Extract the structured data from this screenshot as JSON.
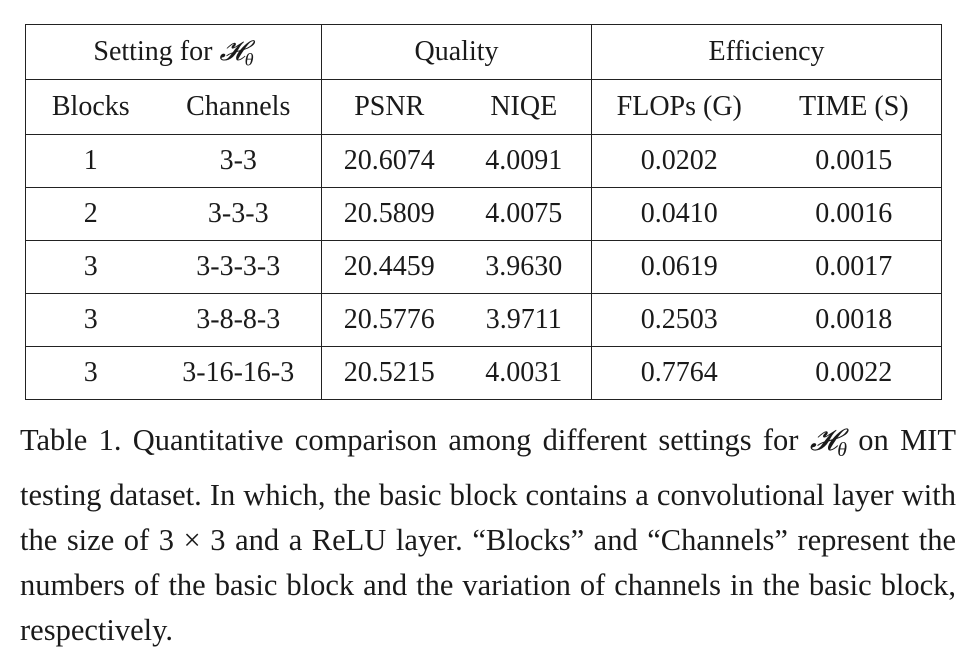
{
  "table": {
    "group_headers": {
      "setting_prefix": "Setting for ",
      "setting_symbol": "𝓗",
      "setting_subscript": "θ",
      "quality": "Quality",
      "efficiency": "Efficiency"
    },
    "columns": [
      "Blocks",
      "Channels",
      "PSNR",
      "NIQE",
      "FLOPs (G)",
      "TIME (S)"
    ],
    "rows": [
      [
        "1",
        "3-3",
        "20.6074",
        "4.0091",
        "0.0202",
        "0.0015"
      ],
      [
        "2",
        "3-3-3",
        "20.5809",
        "4.0075",
        "0.0410",
        "0.0016"
      ],
      [
        "3",
        "3-3-3-3",
        "20.4459",
        "3.9630",
        "0.0619",
        "0.0017"
      ],
      [
        "3",
        "3-8-8-3",
        "20.5776",
        "3.9711",
        "0.2503",
        "0.0018"
      ],
      [
        "3",
        "3-16-16-3",
        "20.5215",
        "4.0031",
        "0.7764",
        "0.0022"
      ]
    ]
  },
  "caption": {
    "part1": "Table 1. Quantitative comparison among different settings for ",
    "symbol": "𝓗",
    "subscript": "θ",
    "part2": " on MIT testing dataset. In which, the basic block contains a convolutional layer with the size of 3 × 3 and a ReLU layer. “Blocks” and “Channels” represent the numbers of the basic block and the variation of channels in the basic block, respectively."
  }
}
